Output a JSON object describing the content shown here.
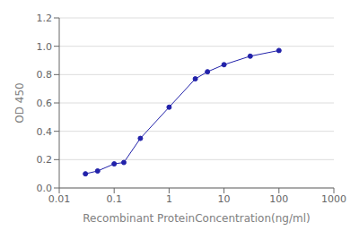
{
  "chart_data": {
    "type": "line",
    "xlabel": "Recombinant ProteinConcentration(ng/ml)",
    "ylabel": "OD 450",
    "x": [
      0.03,
      0.05,
      0.1,
      0.15,
      0.3,
      1.0,
      3.0,
      5.0,
      10.0,
      30.0,
      100.0
    ],
    "values": [
      0.1,
      0.12,
      0.17,
      0.18,
      0.35,
      0.57,
      0.77,
      0.82,
      0.87,
      0.93,
      0.97
    ],
    "color": "#2222aa",
    "marker": "circle",
    "line_style": "solid",
    "log": "x",
    "xlim": [
      0.01,
      1000
    ],
    "ylim": [
      0,
      1.2
    ],
    "xticks": [
      0.01,
      0.1,
      1,
      10,
      100,
      1000
    ],
    "yticks": [
      {
        "value": 0,
        "label": "0.0"
      },
      0.2,
      0.4,
      0.6,
      0.8,
      {
        "value": 1.0,
        "label": "1.0"
      },
      1.2
    ],
    "grid": "y"
  }
}
